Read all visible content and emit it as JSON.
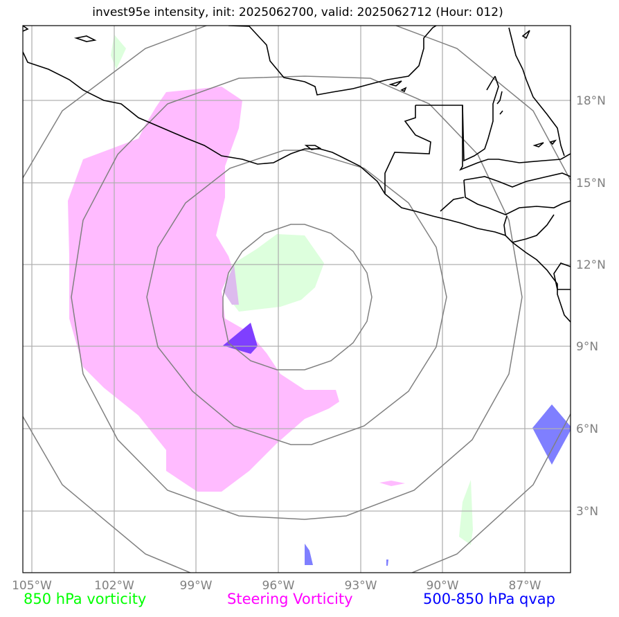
{
  "title": "invest95e intensity, init: 2025062700, valid: 2025062712 (Hour: 012)",
  "longitude_ticks": [
    "105°W",
    "102°W",
    "99°W",
    "96°W",
    "93°W",
    "90°W",
    "87°W"
  ],
  "latitude_ticks": [
    "18°N",
    "15°N",
    "12°N",
    "9°N",
    "6°N",
    "3°N"
  ],
  "legend": [
    {
      "label": "850 hPa vorticity",
      "color": "#00ff00"
    },
    {
      "label": "Steering Vorticity",
      "color": "#ff00ff"
    },
    {
      "label": "500-850 hPa qvap",
      "color": "#0000ff"
    }
  ],
  "colors": {
    "steering_fill": "#ffbbff",
    "vorticity_fill": "#ddffdd",
    "qvap_fill": "#7f7fff",
    "qvap_dark_fill": "#7f3fff",
    "range_ring": "#808080",
    "grid": "#b0b0b0",
    "coastline": "#000000"
  }
}
